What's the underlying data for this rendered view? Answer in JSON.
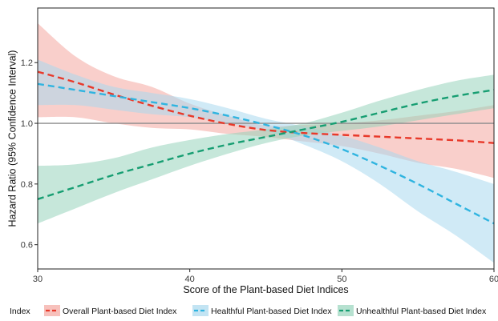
{
  "chart_data": {
    "type": "line",
    "title": "",
    "xlabel": "Score of the Plant-based Diet Indices",
    "ylabel": "Hazard Ratio (95% Confidence Interval)",
    "xlim": [
      30,
      60
    ],
    "ylim": [
      0.52,
      1.38
    ],
    "x_ticks": [
      30,
      40,
      50,
      60
    ],
    "x_tick_labels": [
      "30",
      "40",
      "50",
      "60"
    ],
    "y_ticks": [
      0.6,
      0.8,
      1.0,
      1.2
    ],
    "y_tick_labels": [
      "0.6",
      "0.8",
      "1.0",
      "1.2"
    ],
    "reference_line": 1.0,
    "grid": false,
    "legend": {
      "position": "bottom",
      "title": "Index"
    },
    "x": [
      30,
      32.5,
      35,
      37.5,
      40,
      42.5,
      45,
      47.5,
      50,
      52.5,
      55,
      57.5,
      60
    ],
    "series": [
      {
        "name": "Overall Plant-based Diet Index",
        "line_color": "#e8392a",
        "band_color": "#f4a7a0",
        "values": [
          1.17,
          1.135,
          1.095,
          1.058,
          1.025,
          0.998,
          0.978,
          0.968,
          0.962,
          0.956,
          0.95,
          0.944,
          0.935
        ],
        "lower": [
          1.02,
          1.02,
          1.0,
          0.985,
          0.98,
          0.965,
          0.955,
          0.94,
          0.925,
          0.9,
          0.87,
          0.85,
          0.82
        ],
        "upper": [
          1.33,
          1.22,
          1.155,
          1.12,
          1.065,
          1.025,
          0.993,
          0.995,
          1.0,
          1.01,
          1.025,
          1.04,
          1.06
        ]
      },
      {
        "name": "Healthful Plant-based Diet Index",
        "line_color": "#2fb4e0",
        "band_color": "#a9d8ee",
        "values": [
          1.13,
          1.11,
          1.09,
          1.07,
          1.05,
          1.025,
          0.995,
          0.96,
          0.915,
          0.86,
          0.8,
          0.735,
          0.67
        ],
        "lower": [
          1.06,
          1.06,
          1.045,
          1.03,
          1.02,
          1.0,
          0.975,
          0.93,
          0.875,
          0.8,
          0.71,
          0.63,
          0.54
        ],
        "upper": [
          1.21,
          1.16,
          1.12,
          1.1,
          1.08,
          1.05,
          1.015,
          0.99,
          0.96,
          0.92,
          0.875,
          0.84,
          0.8
        ]
      },
      {
        "name": "Unhealthful Plant-based Diet Index",
        "line_color": "#179e72",
        "band_color": "#97d4bc",
        "values": [
          0.75,
          0.79,
          0.83,
          0.865,
          0.9,
          0.93,
          0.955,
          0.98,
          1.005,
          1.035,
          1.065,
          1.09,
          1.11
        ],
        "lower": [
          0.67,
          0.72,
          0.77,
          0.815,
          0.86,
          0.9,
          0.935,
          0.96,
          0.975,
          0.99,
          1.01,
          1.03,
          1.05
        ],
        "upper": [
          0.86,
          0.865,
          0.885,
          0.92,
          0.945,
          0.965,
          0.98,
          1.0,
          1.035,
          1.075,
          1.11,
          1.14,
          1.16
        ]
      }
    ]
  }
}
